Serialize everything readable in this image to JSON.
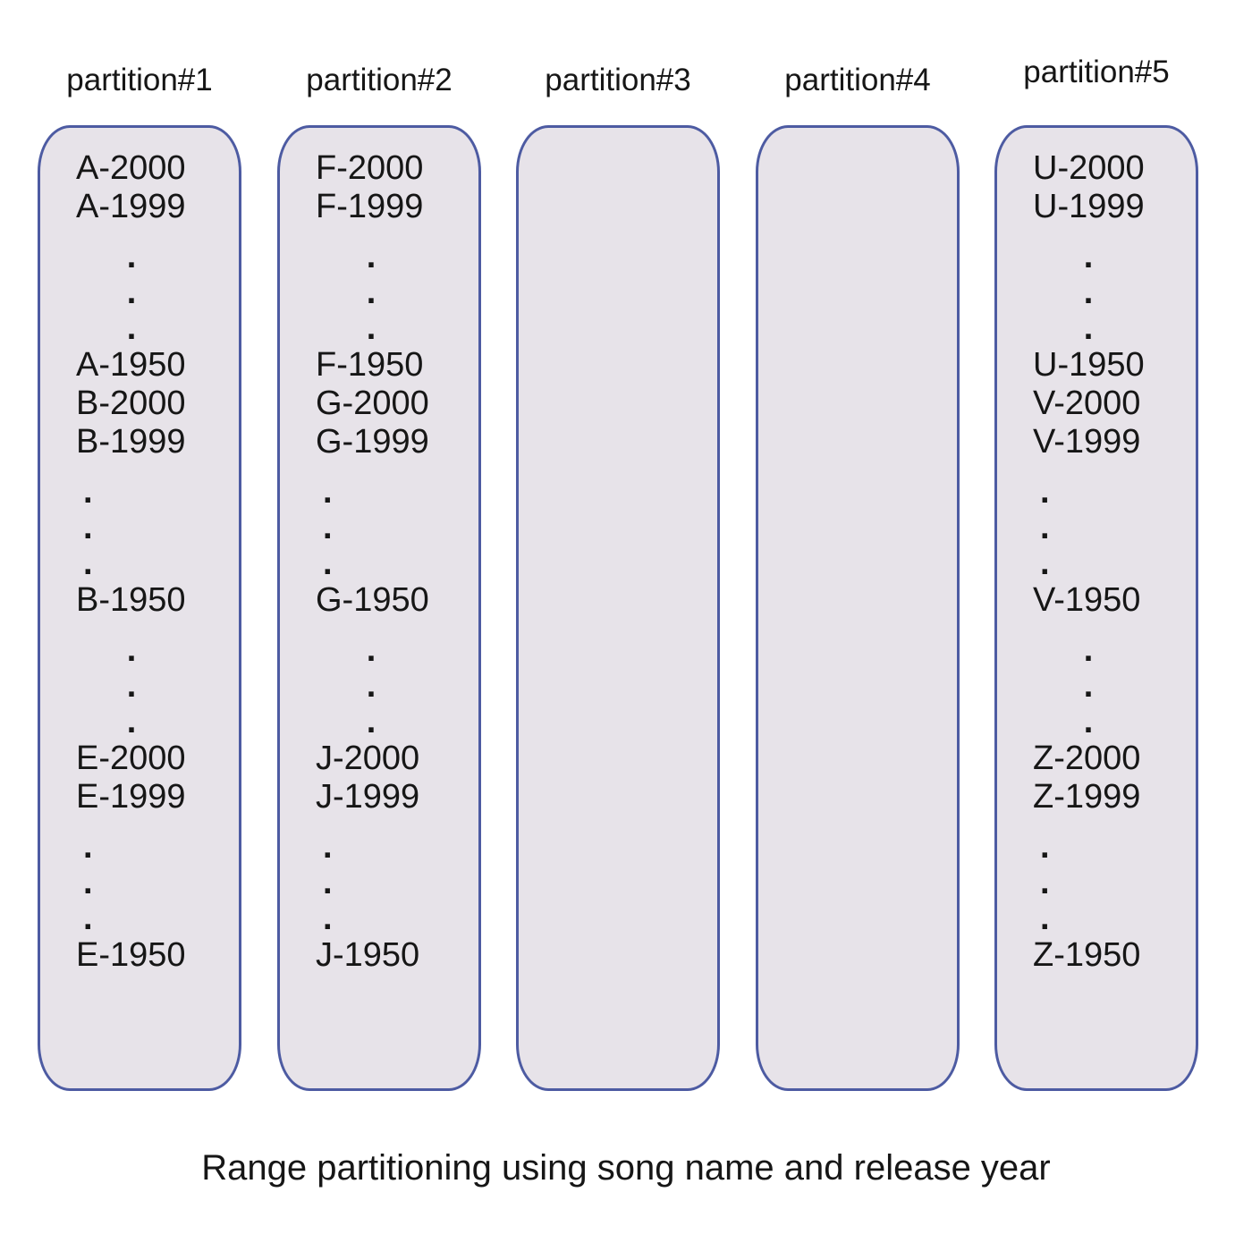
{
  "diagram": {
    "caption": "Range partitioning using song name and release year",
    "colors": {
      "background": "#ffffff",
      "box_fill": "#e7e3e9",
      "box_border": "#4d5ba2",
      "text": "#161616"
    },
    "partitions": [
      {
        "label": "partition#1",
        "rows": [
          {
            "kind": "entry",
            "text": "A-2000"
          },
          {
            "kind": "entry",
            "text": "A-1999"
          },
          {
            "kind": "dot-center",
            "text": "."
          },
          {
            "kind": "dot-center",
            "text": "."
          },
          {
            "kind": "dot-center",
            "text": "."
          },
          {
            "kind": "entry",
            "text": "A-1950"
          },
          {
            "kind": "entry",
            "text": "B-2000"
          },
          {
            "kind": "entry",
            "text": "B-1999"
          },
          {
            "kind": "dot-left",
            "text": "."
          },
          {
            "kind": "dot-left",
            "text": "."
          },
          {
            "kind": "dot-left",
            "text": "."
          },
          {
            "kind": "entry",
            "text": "B-1950"
          },
          {
            "kind": "dot-center",
            "text": "."
          },
          {
            "kind": "dot-center",
            "text": "."
          },
          {
            "kind": "dot-center",
            "text": "."
          },
          {
            "kind": "entry",
            "text": "E-2000"
          },
          {
            "kind": "entry",
            "text": "E-1999"
          },
          {
            "kind": "dot-left",
            "text": "."
          },
          {
            "kind": "dot-left",
            "text": "."
          },
          {
            "kind": "dot-left",
            "text": "."
          },
          {
            "kind": "entry",
            "text": "E-1950"
          }
        ]
      },
      {
        "label": "partition#2",
        "rows": [
          {
            "kind": "entry",
            "text": "F-2000"
          },
          {
            "kind": "entry",
            "text": "F-1999"
          },
          {
            "kind": "dot-center",
            "text": "."
          },
          {
            "kind": "dot-center",
            "text": "."
          },
          {
            "kind": "dot-center",
            "text": "."
          },
          {
            "kind": "entry",
            "text": "F-1950"
          },
          {
            "kind": "entry",
            "text": "G-2000"
          },
          {
            "kind": "entry",
            "text": "G-1999"
          },
          {
            "kind": "dot-left",
            "text": "."
          },
          {
            "kind": "dot-left",
            "text": "."
          },
          {
            "kind": "dot-left",
            "text": "."
          },
          {
            "kind": "entry",
            "text": "G-1950"
          },
          {
            "kind": "dot-center",
            "text": "."
          },
          {
            "kind": "dot-center",
            "text": "."
          },
          {
            "kind": "dot-center",
            "text": "."
          },
          {
            "kind": "entry",
            "text": "J-2000"
          },
          {
            "kind": "entry",
            "text": "J-1999"
          },
          {
            "kind": "dot-left",
            "text": "."
          },
          {
            "kind": "dot-left",
            "text": "."
          },
          {
            "kind": "dot-left",
            "text": "."
          },
          {
            "kind": "entry",
            "text": "J-1950"
          }
        ]
      },
      {
        "label": "partition#3",
        "rows": []
      },
      {
        "label": "partition#4",
        "rows": []
      },
      {
        "label": "partition#5",
        "rows": [
          {
            "kind": "entry",
            "text": "U-2000"
          },
          {
            "kind": "entry",
            "text": "U-1999"
          },
          {
            "kind": "dot-center",
            "text": "."
          },
          {
            "kind": "dot-center",
            "text": "."
          },
          {
            "kind": "dot-center",
            "text": "."
          },
          {
            "kind": "entry",
            "text": "U-1950"
          },
          {
            "kind": "entry",
            "text": "V-2000"
          },
          {
            "kind": "entry",
            "text": "V-1999"
          },
          {
            "kind": "dot-left",
            "text": "."
          },
          {
            "kind": "dot-left",
            "text": "."
          },
          {
            "kind": "dot-left",
            "text": "."
          },
          {
            "kind": "entry",
            "text": "V-1950"
          },
          {
            "kind": "dot-center",
            "text": "."
          },
          {
            "kind": "dot-center",
            "text": "."
          },
          {
            "kind": "dot-center",
            "text": "."
          },
          {
            "kind": "entry",
            "text": "Z-2000"
          },
          {
            "kind": "entry",
            "text": "Z-1999"
          },
          {
            "kind": "dot-left",
            "text": "."
          },
          {
            "kind": "dot-left",
            "text": "."
          },
          {
            "kind": "dot-left",
            "text": "."
          },
          {
            "kind": "entry",
            "text": "Z-1950"
          }
        ]
      }
    ]
  }
}
